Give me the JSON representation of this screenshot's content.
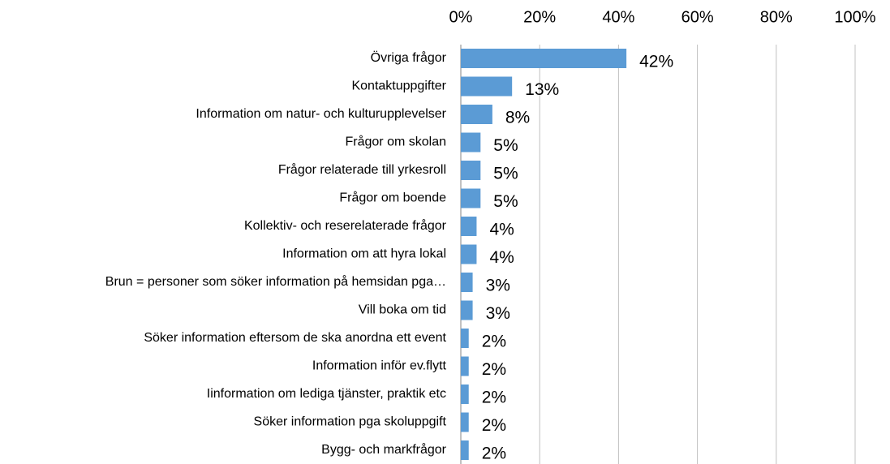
{
  "chart_data": {
    "type": "bar",
    "orientation": "horizontal",
    "categories": [
      "Övriga frågor",
      "Kontaktuppgifter",
      "Information om natur- och kulturupplevelser",
      "Frågor om skolan",
      "Frågor relaterade till yrkesroll",
      "Frågor om boende",
      "Kollektiv- och reserelaterade frågor",
      "Information om att hyra lokal",
      "Brun = personer som söker information på hemsidan pga…",
      "Vill boka om tid",
      "Söker information eftersom de ska anordna ett event",
      "Information inför ev.flytt",
      "Iinformation om lediga tjänster, praktik etc",
      "Söker information pga skoluppgift",
      "Bygg- och markfrågor"
    ],
    "values": [
      42,
      13,
      8,
      5,
      5,
      5,
      4,
      4,
      3,
      3,
      2,
      2,
      2,
      2,
      2
    ],
    "value_labels": [
      "42%",
      "13%",
      "8%",
      "5%",
      "5%",
      "5%",
      "4%",
      "4%",
      "3%",
      "3%",
      "2%",
      "2%",
      "2%",
      "2%",
      "2%"
    ],
    "color": "#5b9bd5",
    "xlim": [
      0,
      100
    ],
    "xticks": [
      {
        "value": 0,
        "label": "0%"
      },
      {
        "value": 20,
        "label": "20%"
      },
      {
        "value": 40,
        "label": "40%"
      },
      {
        "value": 60,
        "label": "60%"
      },
      {
        "value": 80,
        "label": "80%"
      },
      {
        "value": 100,
        "label": "100%"
      }
    ],
    "grid": true
  }
}
